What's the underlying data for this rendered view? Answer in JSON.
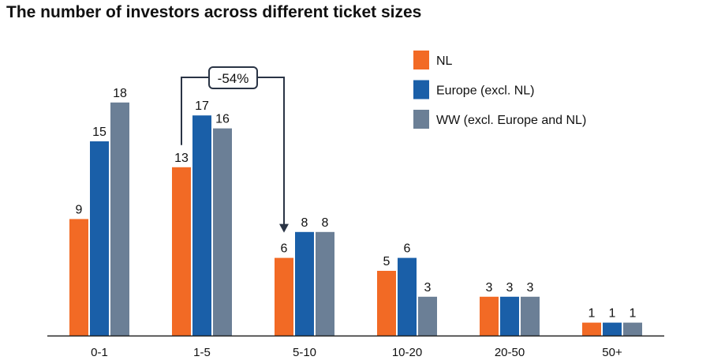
{
  "chart_data": {
    "type": "bar",
    "title": "The number of investors across different ticket sizes",
    "xlabel": "",
    "ylabel": "",
    "ylim": [
      0,
      18
    ],
    "grid": false,
    "legend_position": "top-right",
    "categories": [
      "0-1",
      "1-5",
      "5-10",
      "10-20",
      "20-50",
      "50+"
    ],
    "series": [
      {
        "name": "NL",
        "color": "#F26A25",
        "values": [
          9,
          13,
          6,
          5,
          3,
          1
        ]
      },
      {
        "name": "Europe (excl. NL)",
        "color": "#1A5FA8",
        "values": [
          15,
          17,
          8,
          6,
          3,
          1
        ]
      },
      {
        "name": "WW (excl. Europe and NL)",
        "color": "#6B7F96",
        "values": [
          18,
          16,
          8,
          3,
          3,
          1
        ]
      }
    ],
    "annotations": [
      {
        "text": "-54%",
        "from_category": "1-5",
        "to_category": "5-10",
        "series": "NL"
      }
    ]
  }
}
